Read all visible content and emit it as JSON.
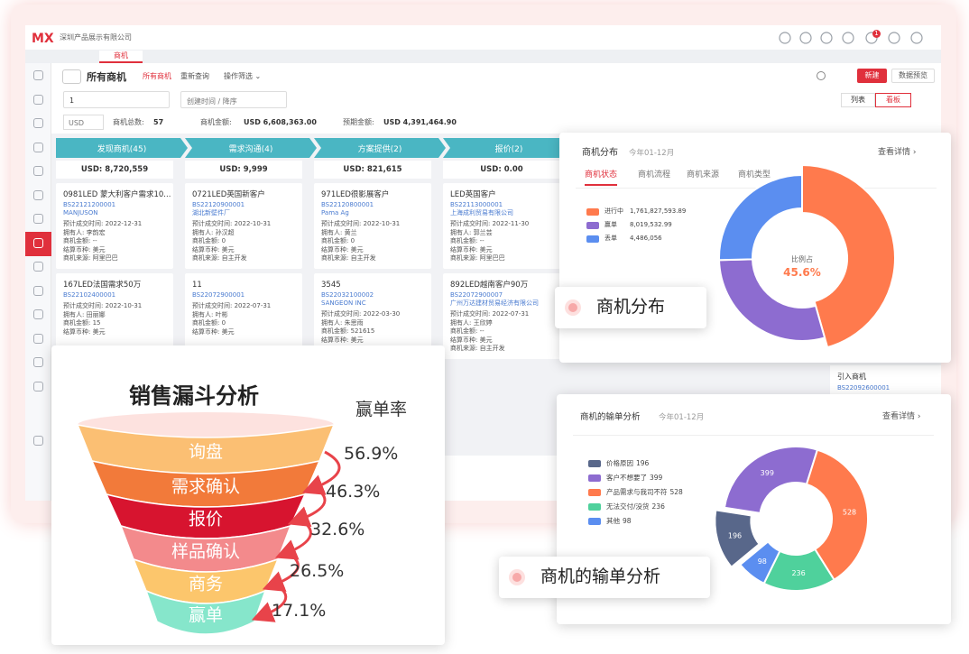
{
  "app": {
    "logo": "MX",
    "company": "深圳产品展示有限公司",
    "notifications": "1",
    "tab": "商机"
  },
  "toolbar": {
    "view": "所有商机",
    "links": [
      "所有商机",
      "重新查询",
      "操作筛选 ⌄"
    ],
    "new": "新建",
    "preview": "数据预览",
    "search": "1",
    "sort": "创建时间 / 降序",
    "list": "列表",
    "board": "看板"
  },
  "summary": {
    "currency": "USD",
    "count_label": "商机总数:",
    "count": "57",
    "amount_label": "商机金额:",
    "amount": "USD 6,608,363.00",
    "expected_label": "预期金额:",
    "expected": "USD 4,391,464.90"
  },
  "stages": [
    {
      "name": "发现商机(45)",
      "total": "USD: 8,720,559"
    },
    {
      "name": "需求沟通(4)",
      "total": "USD: 9,999"
    },
    {
      "name": "方案提供(2)",
      "total": "USD: 821,615"
    },
    {
      "name": "报价(2)",
      "total": "USD: 0.00"
    }
  ],
  "cards": [
    {
      "title": "0981LED 蒙大利客户需求10...",
      "code": "BS22121200001",
      "company": "MANJUSON",
      "lines": [
        "预计成交时间: 2022-12-31",
        "拥有人: 李韵宏",
        "商机金额: --",
        "结算币种: 美元",
        "商机来源: 阿里巴巴"
      ]
    },
    {
      "title": "0721LED英国新客户",
      "code": "BS22120900001",
      "company": "湖北新壁件厂",
      "lines": [
        "预计成交时间: 2022-10-31",
        "拥有人: 孙汉超",
        "商机金额: 0",
        "结算币种: 美元",
        "商机来源: 自主开发"
      ]
    },
    {
      "title": "971LED很影展客户",
      "code": "BS22120800001",
      "company": "Pama Ag",
      "lines": [
        "预计成交时间: 2022-10-31",
        "拥有人: 黄兰",
        "商机金额: 0",
        "结算币种: 美元",
        "商机来源: 自主开发"
      ]
    },
    {
      "title": "LED英国客户",
      "code": "BS22113000001",
      "company": "上海成利贸易有限公司",
      "lines": [
        "预计成交时间: 2022-11-30",
        "拥有人: 郭兰芸",
        "商机金额: --",
        "结算币种: 美元",
        "商机来源: 阿里巴巴"
      ]
    },
    {
      "title": "167LED法国需求50万",
      "code": "BS22102400001",
      "company": "",
      "lines": [
        "预计成交时间: 2022-10-31",
        "拥有人: 田丽娜",
        "商机金额: 15",
        "结算币种: 美元"
      ]
    },
    {
      "title": "11",
      "code": "BS22072900001",
      "company": "",
      "lines": [
        "预计成交时间: 2022-07-31",
        "拥有人: 叶彬",
        "商机金额: 0",
        "结算币种: 美元"
      ]
    },
    {
      "title": "3545",
      "code": "BS22032100002",
      "company": "SANGEON INC",
      "lines": [
        "预计成交时间: 2022-03-30",
        "拥有人: 朱思雨",
        "商机金额: 521615",
        "结算币种: 美元"
      ]
    },
    {
      "title": "892LED越南客户90万",
      "code": "BS22072900007",
      "company": "广州万达建材贸易经济有限公司",
      "lines": [
        "预计成交时间: 2022-07-31",
        "拥有人: 王欣婷",
        "商机金额: --",
        "结算币种: 美元",
        "商机来源: 自主开发"
      ]
    }
  ],
  "side_card": {
    "title": "引入商机",
    "code": "BS22092600001"
  },
  "distribution": {
    "title": "商机分布",
    "period": "今年01-12月",
    "more": "查看详情 ›",
    "tabs": [
      "商机状态",
      "商机流程",
      "商机来源",
      "商机类型"
    ],
    "legend": [
      {
        "name": "进行中",
        "amount": "1,761,827,593.89",
        "color": "#ff7a4d"
      },
      {
        "name": "赢单",
        "amount": "8,019,532.99",
        "color": "#8d6cd0"
      },
      {
        "name": "丢单",
        "amount": "4,486,056",
        "color": "#5b8ef0"
      }
    ],
    "shares": [
      45.6,
      29.0,
      25.4
    ],
    "center_label": "比例占",
    "center_value": "45.6%",
    "badge": "商机分布"
  },
  "loss": {
    "title": "商机的输单分析",
    "period": "今年01-12月",
    "more": "查看详情 ›",
    "items": [
      {
        "name": "价格原因",
        "value": 196,
        "color": "#58678a"
      },
      {
        "name": "客户不想要了",
        "value": 399,
        "color": "#8d6cd0"
      },
      {
        "name": "产品需求与我司不符",
        "value": 528,
        "color": "#ff7a4d"
      },
      {
        "name": "无法交付/没货",
        "value": 236,
        "color": "#4fd19c"
      },
      {
        "name": "其他",
        "value": 98,
        "color": "#5b8ef0"
      }
    ],
    "badge": "商机的输单分析"
  },
  "funnel": {
    "title": "销售漏斗分析",
    "rate_title": "赢单率",
    "stages": [
      {
        "name": "询盘",
        "color": "#fbbf73"
      },
      {
        "name": "需求确认",
        "color": "#f27a3a"
      },
      {
        "name": "报价",
        "color": "#d7142f"
      },
      {
        "name": "样品确认",
        "color": "#f38a8c"
      },
      {
        "name": "商务",
        "color": "#fcc66c"
      },
      {
        "name": "赢单",
        "color": "#86e6cb"
      }
    ],
    "rates": [
      "56.9%",
      "46.3%",
      "32.6%",
      "26.5%",
      "17.1%"
    ]
  }
}
